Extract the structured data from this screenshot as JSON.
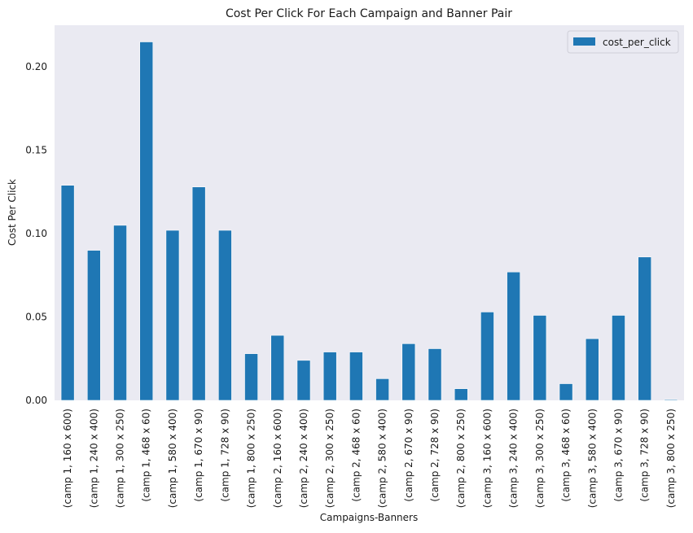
{
  "chart_data": {
    "type": "bar",
    "title": "Cost Per Click For Each Campaign and Banner Pair",
    "xlabel": "Campaigns-Banners",
    "ylabel": "Cost Per Click",
    "ylim": [
      0,
      0.225
    ],
    "yticks": [
      "0.00",
      "0.05",
      "0.10",
      "0.15",
      "0.20"
    ],
    "grid": false,
    "legend": "top-right",
    "colors": {
      "bar": "#1f77b4",
      "plot_bg": "#eaeaf2"
    },
    "categories": [
      "(camp 1, 160 x 600)",
      "(camp 1, 240 x 400)",
      "(camp 1, 300 x 250)",
      "(camp 1, 468 x 60)",
      "(camp 1, 580 x 400)",
      "(camp 1, 670 x 90)",
      "(camp 1, 728 x 90)",
      "(camp 1, 800 x 250)",
      "(camp 2, 160 x 600)",
      "(camp 2, 240 x 400)",
      "(camp 2, 300 x 250)",
      "(camp 2, 468 x 60)",
      "(camp 2, 580 x 400)",
      "(camp 2, 670 x 90)",
      "(camp 2, 728 x 90)",
      "(camp 2, 800 x 250)",
      "(camp 3, 160 x 600)",
      "(camp 3, 240 x 400)",
      "(camp 3, 300 x 250)",
      "(camp 3, 468 x 60)",
      "(camp 3, 580 x 400)",
      "(camp 3, 670 x 90)",
      "(camp 3, 728 x 90)",
      "(camp 3, 800 x 250)"
    ],
    "series": [
      {
        "name": "cost_per_click",
        "values": [
          0.129,
          0.09,
          0.105,
          0.215,
          0.102,
          0.128,
          0.102,
          0.028,
          0.039,
          0.024,
          0.029,
          0.029,
          0.013,
          0.034,
          0.031,
          0.007,
          0.053,
          0.077,
          0.051,
          0.01,
          0.037,
          0.051,
          0.086,
          0.0005
        ]
      }
    ]
  }
}
